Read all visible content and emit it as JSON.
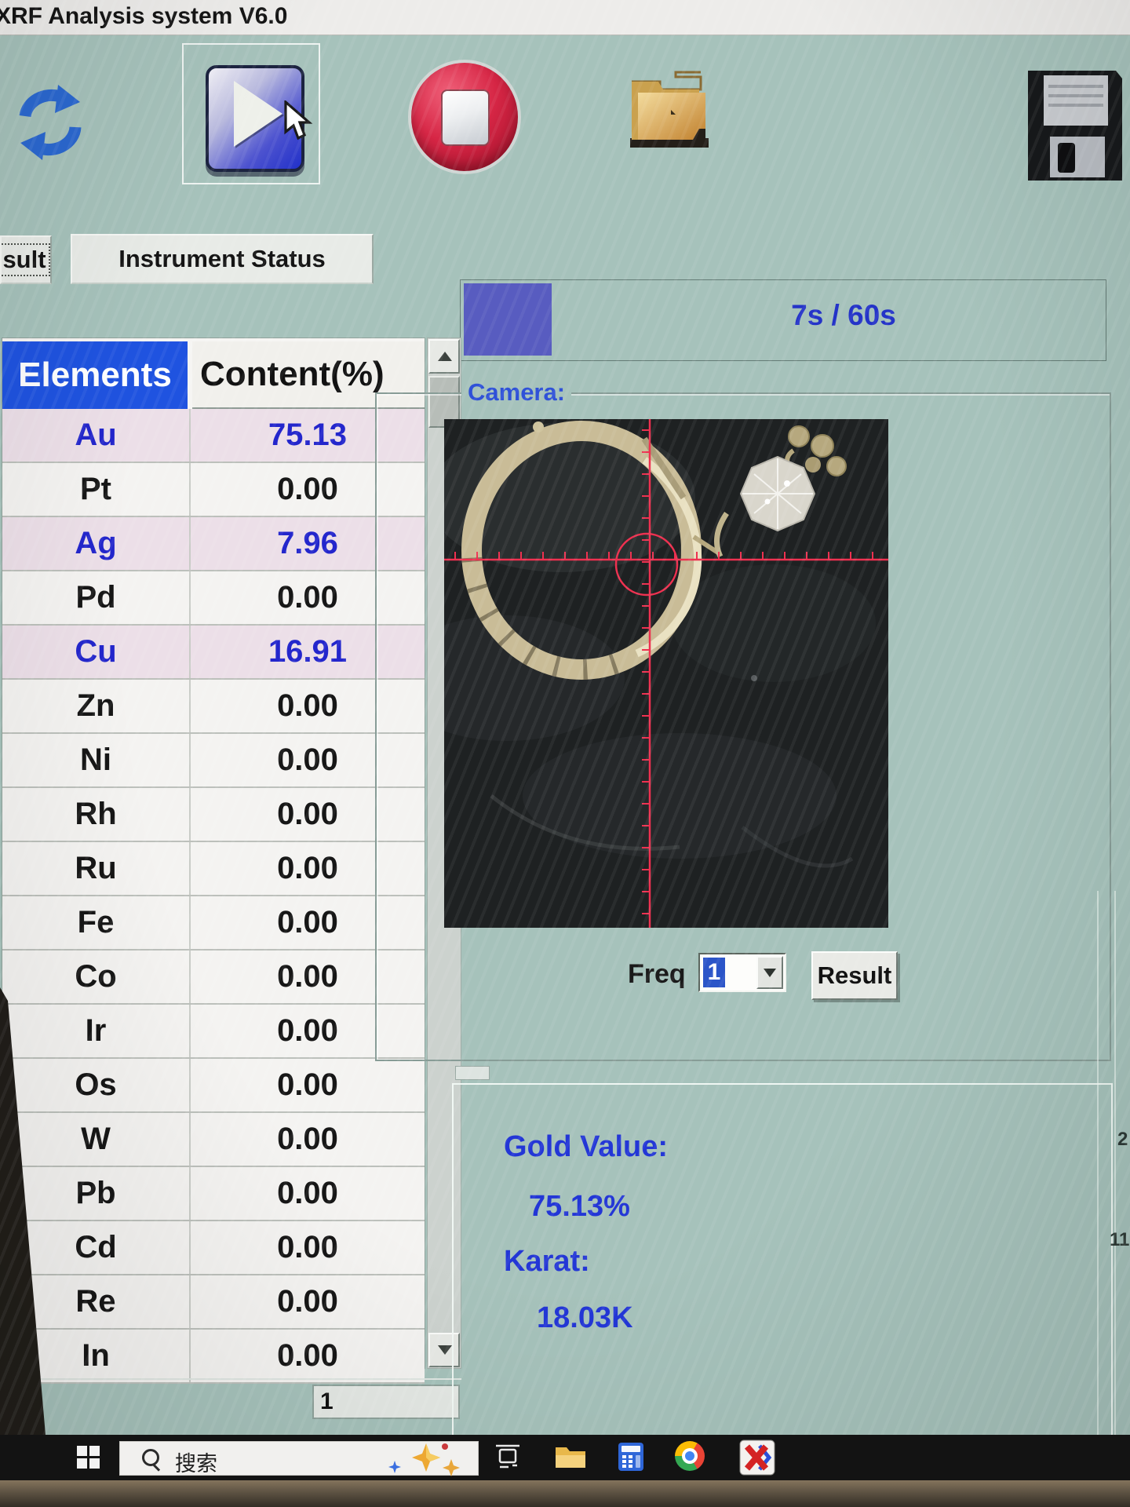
{
  "window": {
    "title": "XRF Analysis system V6.0"
  },
  "toolbar": {
    "icons": [
      "refresh-icon",
      "start-play-icon",
      "stop-icon",
      "open-folder-icon",
      "save-floppy-icon"
    ]
  },
  "tabs": {
    "result": "sult",
    "instrument": "Instrument Status"
  },
  "progress": {
    "time": "7s / 60s",
    "fill_color": "#585cc0"
  },
  "table": {
    "headers": [
      "Elements",
      "Content(%)"
    ],
    "rows": [
      {
        "el": "Au",
        "value": "75.13",
        "highlight": true
      },
      {
        "el": "Pt",
        "value": "0.00",
        "highlight": false
      },
      {
        "el": "Ag",
        "value": "7.96",
        "highlight": true
      },
      {
        "el": "Pd",
        "value": "0.00",
        "highlight": false
      },
      {
        "el": "Cu",
        "value": "16.91",
        "highlight": true
      },
      {
        "el": "Zn",
        "value": "0.00",
        "highlight": false
      },
      {
        "el": "Ni",
        "value": "0.00",
        "highlight": false
      },
      {
        "el": "Rh",
        "value": "0.00",
        "highlight": false
      },
      {
        "el": "Ru",
        "value": "0.00",
        "highlight": false
      },
      {
        "el": "Fe",
        "value": "0.00",
        "highlight": false
      },
      {
        "el": "Co",
        "value": "0.00",
        "highlight": false
      },
      {
        "el": "Ir",
        "value": "0.00",
        "highlight": false
      },
      {
        "el": "Os",
        "value": "0.00",
        "highlight": false
      },
      {
        "el": "W",
        "value": "0.00",
        "highlight": false
      },
      {
        "el": "Pb",
        "value": "0.00",
        "highlight": false
      },
      {
        "el": "Cd",
        "value": "0.00",
        "highlight": false
      },
      {
        "el": "Re",
        "value": "0.00",
        "highlight": false
      },
      {
        "el": "In",
        "value": "0.00",
        "highlight": false
      }
    ]
  },
  "camera": {
    "label": "Camera:"
  },
  "freq": {
    "label": "Freq",
    "value": "1",
    "result_button": "Result"
  },
  "gold": {
    "value_label": "Gold Value:",
    "value": "75.13%",
    "karat_label": "Karat:",
    "karat": "18.03K"
  },
  "statusbar": {
    "page": "1"
  },
  "taskbar": {
    "search": "搜索",
    "icons": [
      "windows-start-icon",
      "search-icon",
      "copilot-icon",
      "task-view-icon",
      "file-explorer-icon",
      "calculator-icon",
      "chrome-icon",
      "x-app-icon"
    ]
  },
  "edge_fragments": {
    "a": "2",
    "b": "11"
  },
  "colors": {
    "desktop_teal": "#a6c2bb",
    "header_blue": "#1f53e0",
    "value_blue": "#2326cc",
    "crosshair_red": "#ee3150",
    "highlight_row": "#ecdfe8"
  }
}
